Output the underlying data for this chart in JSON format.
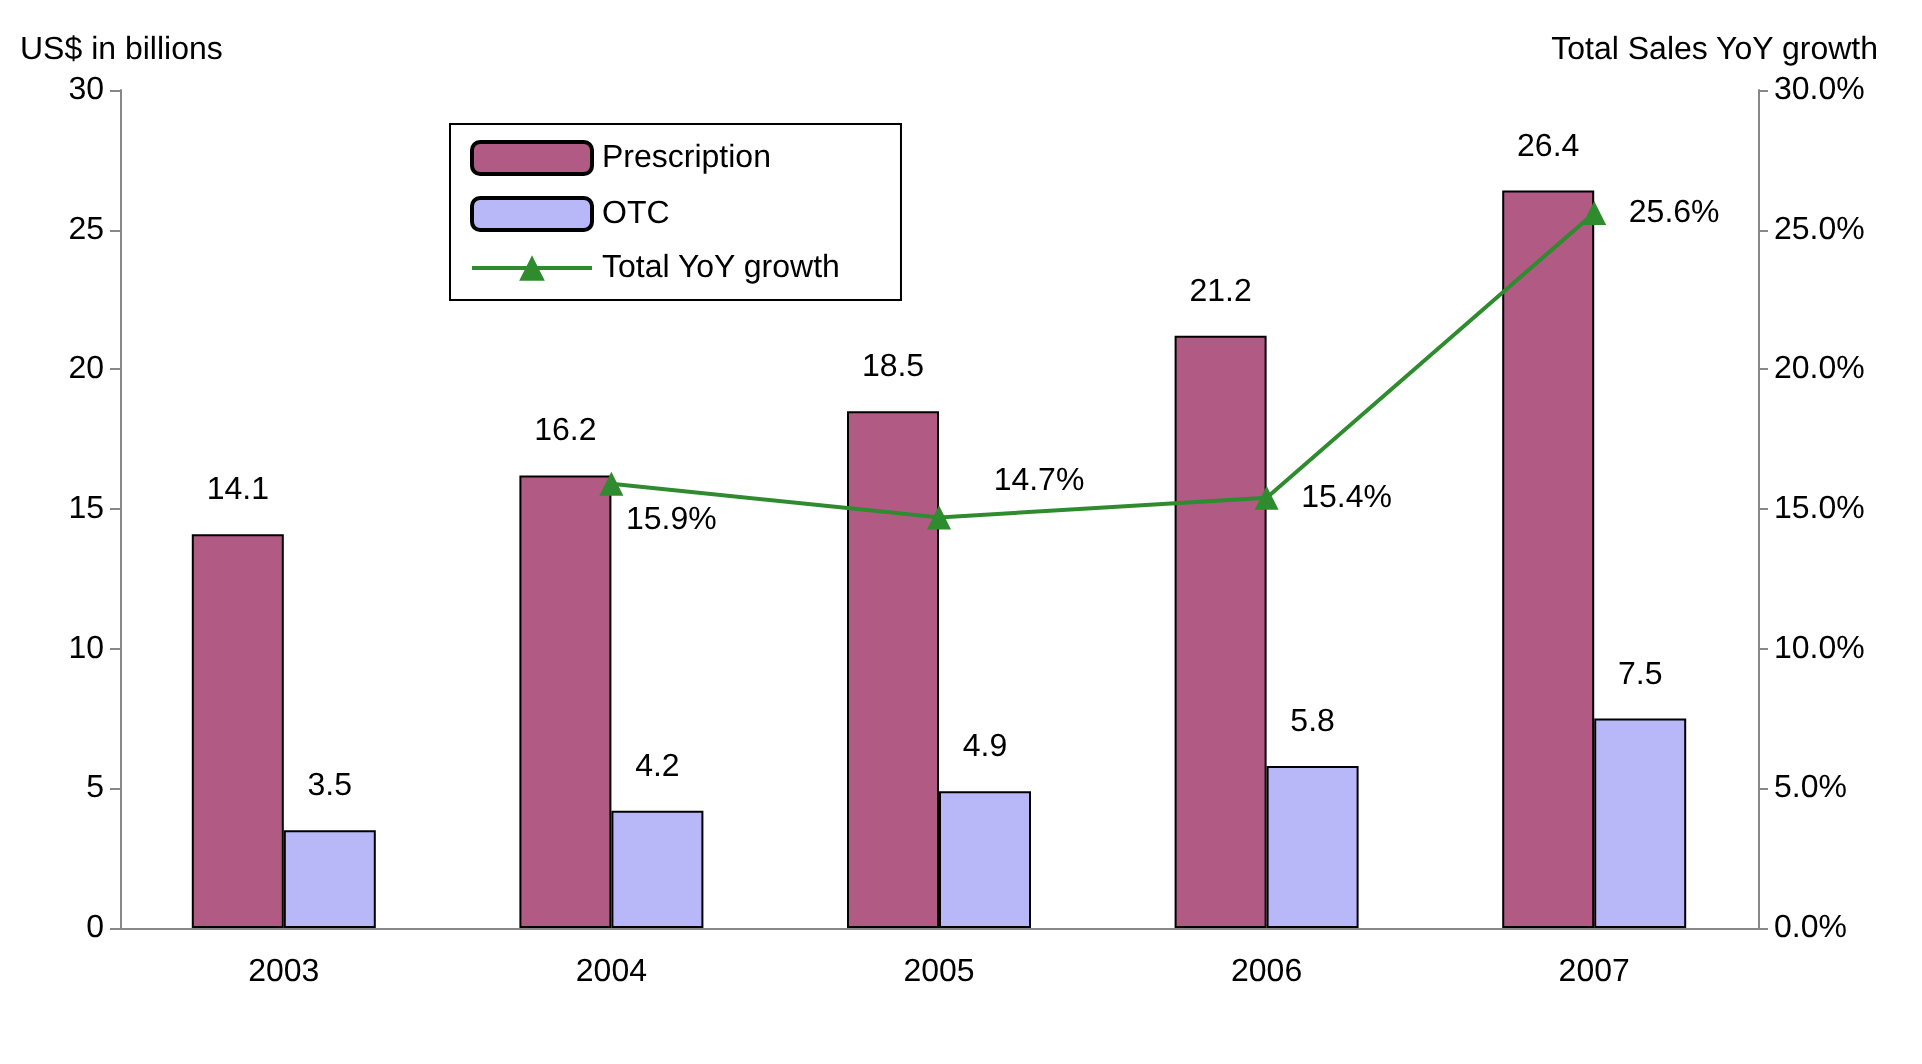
{
  "chart_data": {
    "type": "bar",
    "ylabel": "US$ in billions",
    "y2label": "Total Sales YoY growth",
    "categories": [
      "2003",
      "2004",
      "2005",
      "2006",
      "2007"
    ],
    "series": [
      {
        "name": "Prescription",
        "color": "#b05a84",
        "values": [
          14.1,
          16.2,
          18.5,
          21.2,
          26.4
        ],
        "value_labels": [
          "14.1",
          "16.2",
          "18.5",
          "21.2",
          "26.4"
        ]
      },
      {
        "name": "OTC",
        "color": "#b8b8f8",
        "values": [
          3.5,
          4.2,
          4.9,
          5.8,
          7.5
        ],
        "value_labels": [
          "3.5",
          "4.2",
          "4.9",
          "5.8",
          "7.5"
        ]
      },
      {
        "name": "Total YoY growth",
        "type": "line",
        "axis": "y2",
        "color": "#2e8b2e",
        "marker": "triangle",
        "values": [
          null,
          15.9,
          14.7,
          15.4,
          25.6
        ],
        "value_labels": [
          null,
          "15.9%",
          "14.7%",
          "15.4%",
          "25.6%"
        ]
      }
    ],
    "ylim": [
      0,
      30
    ],
    "yticks": [
      0,
      5,
      10,
      15,
      20,
      25,
      30
    ],
    "y2lim": [
      0,
      30
    ],
    "y2ticks": [
      {
        "value": 0,
        "label": "0.0%"
      },
      {
        "value": 5,
        "label": "5.0%"
      },
      {
        "value": 10,
        "label": "10.0%"
      },
      {
        "value": 15,
        "label": "15.0%"
      },
      {
        "value": 20,
        "label": "20.0%"
      },
      {
        "value": 25,
        "label": "25.0%"
      },
      {
        "value": 30,
        "label": "30.0%"
      }
    ],
    "grid": false,
    "legend": "top left"
  }
}
